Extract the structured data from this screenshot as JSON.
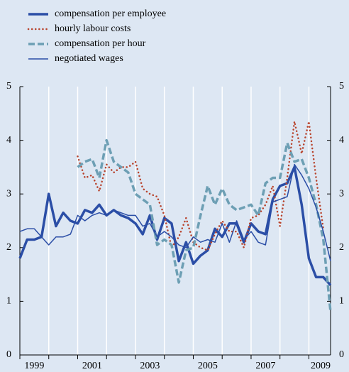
{
  "chart_data": {
    "type": "line",
    "xlim": [
      1999,
      2009.75
    ],
    "xticks": [
      1999,
      2001,
      2003,
      2005,
      2007,
      2009
    ],
    "minor_xticks": [
      2000,
      2002,
      2004,
      2006,
      2008
    ],
    "ylim": [
      0,
      5
    ],
    "yticks": [
      0,
      1,
      2,
      3,
      4,
      5
    ],
    "right_axis_labels": true,
    "x": [
      1999,
      1999.25,
      1999.5,
      1999.75,
      2000,
      2000.25,
      2000.5,
      2000.75,
      2001,
      2001.25,
      2001.5,
      2001.75,
      2002,
      2002.25,
      2002.5,
      2002.75,
      2003,
      2003.25,
      2003.5,
      2003.75,
      2004,
      2004.25,
      2004.5,
      2004.75,
      2005,
      2005.25,
      2005.5,
      2005.75,
      2006,
      2006.25,
      2006.5,
      2006.75,
      2007,
      2007.25,
      2007.5,
      2007.75,
      2008,
      2008.25,
      2008.5,
      2008.75,
      2009,
      2009.25,
      2009.5,
      2009.75
    ],
    "series": [
      {
        "name": "compensation per employee",
        "color": "#2b4ea6",
        "style": "thick",
        "values": [
          1.8,
          2.15,
          2.15,
          2.2,
          3.0,
          2.4,
          2.65,
          2.5,
          2.45,
          2.7,
          2.65,
          2.8,
          2.6,
          2.7,
          2.6,
          2.55,
          2.45,
          2.25,
          2.6,
          2.15,
          2.55,
          2.45,
          1.75,
          2.1,
          1.7,
          1.85,
          1.95,
          2.35,
          2.2,
          2.45,
          2.45,
          2.1,
          2.45,
          2.3,
          2.25,
          2.9,
          3.15,
          3.2,
          3.5,
          2.8,
          1.8,
          1.45,
          1.45,
          1.3
        ]
      },
      {
        "name": "hourly labour costs",
        "color": "#b8432c",
        "style": "dotted",
        "values": [
          null,
          null,
          null,
          null,
          null,
          null,
          null,
          null,
          3.7,
          3.3,
          3.35,
          3.05,
          3.55,
          3.4,
          3.5,
          3.5,
          3.6,
          3.1,
          3.0,
          2.95,
          2.6,
          2.0,
          2.2,
          2.55,
          2.1,
          2.0,
          1.95,
          2.25,
          2.5,
          2.3,
          2.3,
          2.0,
          2.55,
          2.6,
          2.8,
          3.15,
          2.4,
          3.3,
          4.35,
          3.75,
          4.35,
          3.3,
          2.35,
          null
        ]
      },
      {
        "name": "compensation per hour",
        "color": "#6d9fb4",
        "style": "dashed",
        "values": [
          null,
          null,
          null,
          null,
          null,
          null,
          null,
          null,
          3.5,
          3.6,
          3.65,
          3.3,
          4.0,
          3.6,
          3.5,
          3.4,
          3.0,
          2.9,
          2.8,
          2.05,
          2.15,
          2.05,
          1.35,
          1.95,
          2.0,
          2.6,
          3.15,
          2.8,
          3.1,
          2.8,
          2.7,
          2.75,
          2.8,
          2.6,
          3.2,
          3.3,
          3.3,
          3.95,
          3.6,
          3.65,
          3.3,
          2.8,
          2.15,
          0.8
        ]
      },
      {
        "name": "negotiated wages",
        "color": "#2b4ea6",
        "style": "thin",
        "values": [
          2.3,
          2.35,
          2.35,
          2.2,
          2.05,
          2.2,
          2.2,
          2.25,
          2.6,
          2.5,
          2.6,
          2.65,
          2.6,
          2.7,
          2.65,
          2.6,
          2.6,
          2.4,
          2.45,
          2.2,
          2.3,
          2.2,
          2.05,
          2.0,
          2.2,
          2.1,
          2.15,
          2.1,
          2.45,
          2.1,
          2.5,
          2.15,
          2.3,
          2.1,
          2.05,
          2.85,
          2.9,
          2.95,
          3.55,
          3.35,
          3.1,
          2.75,
          2.3,
          1.75
        ]
      }
    ]
  }
}
